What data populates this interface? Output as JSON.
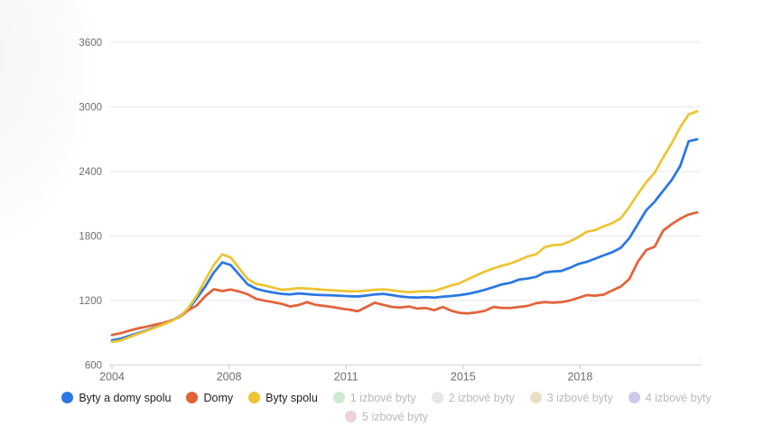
{
  "chart_data": {
    "type": "line",
    "title": "",
    "xlabel": "",
    "ylabel": "",
    "grid": true,
    "legend_position": "bottom",
    "y_axis": {
      "min": 600,
      "max": 3600,
      "step": 600,
      "tick_labels": [
        "600",
        "1200",
        "1800",
        "2400",
        "3000",
        "3600"
      ]
    },
    "x_axis": {
      "tick_labels": [
        "2004",
        "2008",
        "2011",
        "2015",
        "2018"
      ],
      "tick_positions": [
        0,
        0.2,
        0.4,
        0.6,
        0.8
      ]
    },
    "series": [
      {
        "name": "Byty a domy spolu",
        "color": "#2b78e4",
        "hidden": false,
        "values": [
          830,
          845,
          870,
          895,
          920,
          950,
          980,
          1010,
          1055,
          1120,
          1220,
          1330,
          1460,
          1555,
          1530,
          1440,
          1350,
          1310,
          1290,
          1275,
          1262,
          1256,
          1266,
          1260,
          1254,
          1250,
          1248,
          1244,
          1240,
          1238,
          1246,
          1256,
          1262,
          1250,
          1238,
          1230,
          1228,
          1232,
          1228,
          1235,
          1242,
          1250,
          1262,
          1280,
          1300,
          1325,
          1350,
          1365,
          1395,
          1405,
          1420,
          1460,
          1470,
          1475,
          1505,
          1540,
          1560,
          1590,
          1620,
          1650,
          1690,
          1780,
          1910,
          2040,
          2120,
          2220,
          2320,
          2450,
          2680,
          2700
        ]
      },
      {
        "name": "Domy",
        "color": "#e2633a",
        "hidden": false,
        "values": [
          880,
          895,
          920,
          940,
          955,
          975,
          990,
          1015,
          1045,
          1110,
          1155,
          1240,
          1305,
          1288,
          1302,
          1284,
          1258,
          1215,
          1198,
          1185,
          1170,
          1145,
          1158,
          1185,
          1160,
          1150,
          1140,
          1125,
          1115,
          1100,
          1140,
          1180,
          1160,
          1140,
          1135,
          1145,
          1125,
          1130,
          1110,
          1140,
          1105,
          1085,
          1080,
          1090,
          1105,
          1140,
          1130,
          1130,
          1140,
          1150,
          1175,
          1185,
          1180,
          1185,
          1200,
          1225,
          1250,
          1245,
          1255,
          1295,
          1330,
          1400,
          1560,
          1670,
          1700,
          1850,
          1910,
          1960,
          2000,
          2020
        ]
      },
      {
        "name": "Byty spolu",
        "color": "#eec433",
        "hidden": false,
        "values": [
          815,
          828,
          858,
          888,
          915,
          945,
          975,
          1008,
          1050,
          1130,
          1245,
          1390,
          1530,
          1630,
          1600,
          1500,
          1400,
          1355,
          1340,
          1320,
          1300,
          1306,
          1316,
          1312,
          1306,
          1300,
          1296,
          1290,
          1286,
          1286,
          1292,
          1300,
          1304,
          1296,
          1286,
          1278,
          1284,
          1286,
          1290,
          1315,
          1340,
          1360,
          1400,
          1435,
          1470,
          1500,
          1525,
          1545,
          1575,
          1610,
          1630,
          1695,
          1715,
          1720,
          1750,
          1790,
          1840,
          1855,
          1890,
          1920,
          1965,
          2070,
          2190,
          2300,
          2390,
          2530,
          2660,
          2810,
          2930,
          2960
        ]
      },
      {
        "name": "1 izbové byty",
        "color": "#cfe9d0",
        "hidden": true,
        "values": []
      },
      {
        "name": "2 izbové byty",
        "color": "#e4e8ea",
        "hidden": true,
        "values": []
      },
      {
        "name": "3 izbové byty",
        "color": "#eadfc6",
        "hidden": true,
        "values": []
      },
      {
        "name": "4 izbové byty",
        "color": "#cfcaec",
        "hidden": true,
        "values": []
      },
      {
        "name": "5 izbové byty",
        "color": "#ebd2dc",
        "hidden": true,
        "values": []
      }
    ]
  },
  "colors": {
    "grid": "#e8e8e8",
    "axis": "#d4d4d4",
    "tick": "#c9c9c9",
    "axis_text": "#6e6e6e",
    "legend_text": "#1f1f1f",
    "legend_text_disabled": "#b9b9b9"
  }
}
